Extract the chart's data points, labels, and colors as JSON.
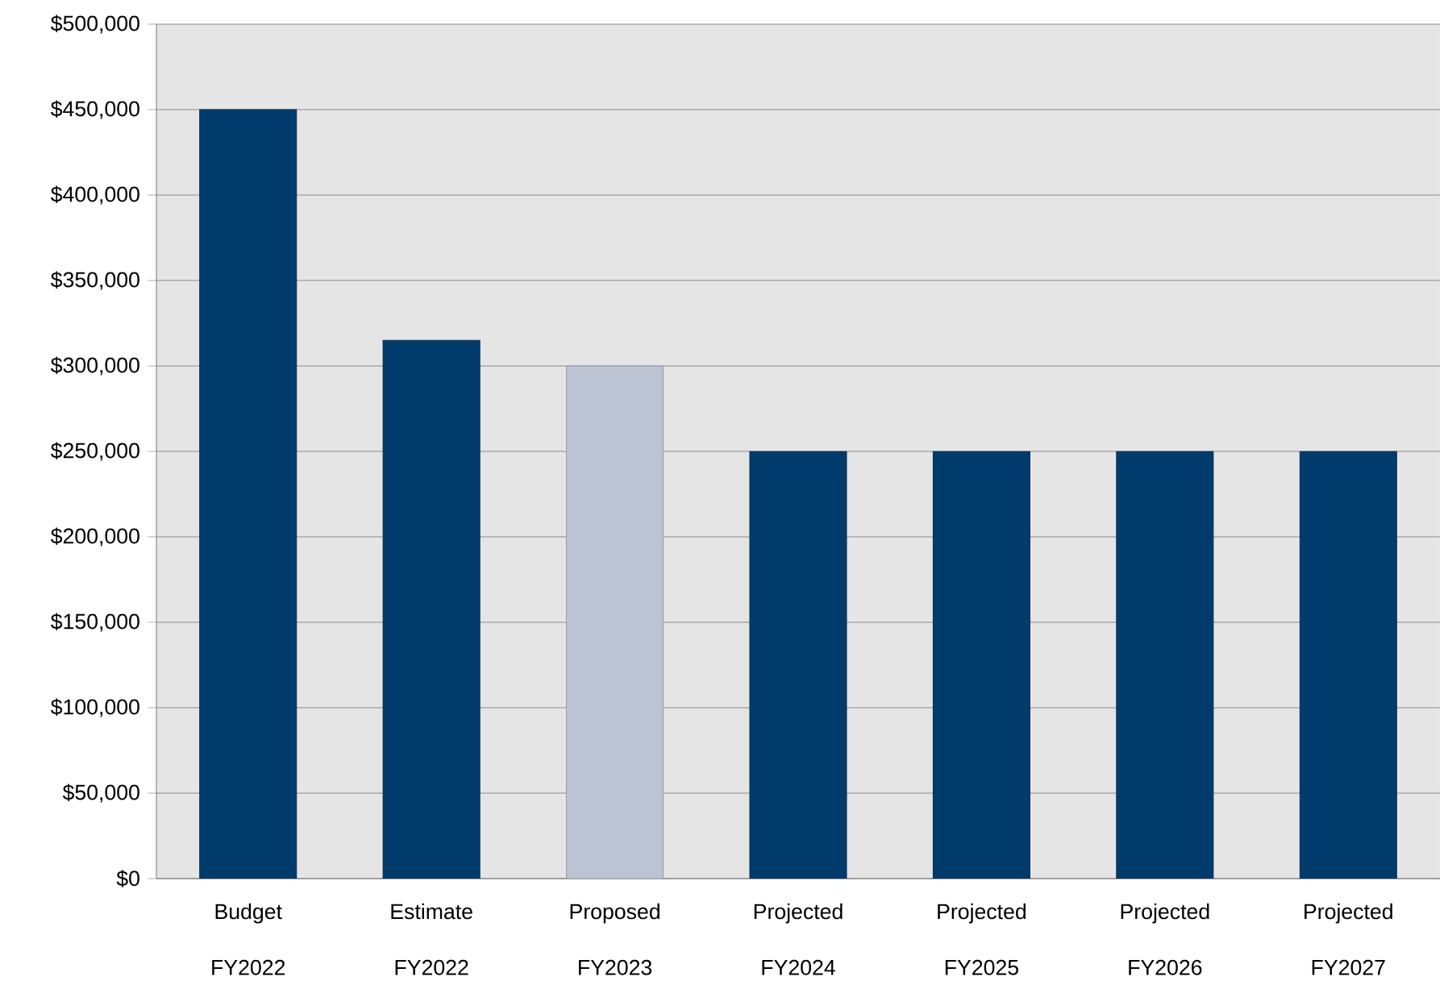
{
  "chart_data": {
    "type": "bar",
    "categories": [
      "Budget FY2022",
      "Estimate FY2022",
      "Proposed FY2023",
      "Projected FY2024",
      "Projected FY2025",
      "Projected FY2026",
      "Projected FY2027"
    ],
    "values": [
      450000,
      315000,
      300000,
      250000,
      250000,
      250000,
      250000
    ],
    "colors": [
      "#003b6c",
      "#003b6c",
      "#bcc3d3",
      "#003b6c",
      "#003b6c",
      "#003b6c",
      "#003b6c"
    ],
    "ylim": [
      0,
      500000
    ],
    "yticks": [
      {
        "value": 0,
        "label": "$0"
      },
      {
        "value": 50000,
        "label": "$50,000"
      },
      {
        "value": 100000,
        "label": "$100,000"
      },
      {
        "value": 150000,
        "label": "$150,000"
      },
      {
        "value": 200000,
        "label": "$200,000"
      },
      {
        "value": 250000,
        "label": "$250,000"
      },
      {
        "value": 300000,
        "label": "$300,000"
      },
      {
        "value": 350000,
        "label": "$350,000"
      },
      {
        "value": 400000,
        "label": "$400,000"
      },
      {
        "value": 450000,
        "label": "$450,000"
      },
      {
        "value": 500000,
        "label": "$500,000"
      }
    ],
    "grid": "y"
  }
}
